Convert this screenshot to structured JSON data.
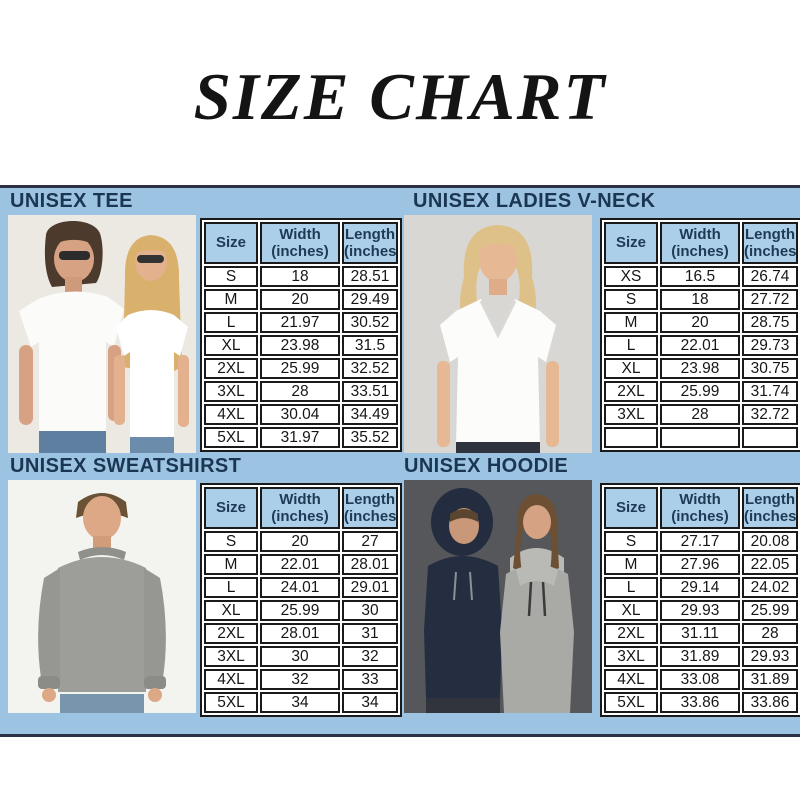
{
  "title": "SIZE CHART",
  "colors": {
    "panel_blue": "#9dc3e3",
    "table_header_blue": "#abcfe9",
    "navy_text": "#1b3653",
    "panel_border_navy": "#2a3145"
  },
  "table_columns": [
    "Size",
    "Width\n(inches)",
    "Length\n(inches)"
  ],
  "sections": [
    {
      "label": "UNISEX TEE",
      "photo": "couple-in-white-tees",
      "rows": [
        [
          "S",
          "18",
          "28.51"
        ],
        [
          "M",
          "20",
          "29.49"
        ],
        [
          "L",
          "21.97",
          "30.52"
        ],
        [
          "XL",
          "23.98",
          "31.5"
        ],
        [
          "2XL",
          "25.99",
          "32.52"
        ],
        [
          "3XL",
          "28",
          "33.51"
        ],
        [
          "4XL",
          "30.04",
          "34.49"
        ],
        [
          "5XL",
          "31.97",
          "35.52"
        ]
      ]
    },
    {
      "label": "UNISEX LADIES V-NECK",
      "photo": "woman-in-white-v-neck",
      "rows": [
        [
          "XS",
          "16.5",
          "26.74"
        ],
        [
          "S",
          "18",
          "27.72"
        ],
        [
          "M",
          "20",
          "28.75"
        ],
        [
          "L",
          "22.01",
          "29.73"
        ],
        [
          "XL",
          "23.98",
          "30.75"
        ],
        [
          "2XL",
          "25.99",
          "31.74"
        ],
        [
          "3XL",
          "28",
          "32.72"
        ],
        [
          "",
          "",
          ""
        ]
      ]
    },
    {
      "label": "UNISEX SWEATSHIRST",
      "photo": "man-in-gray-sweatshirt",
      "rows": [
        [
          "S",
          "20",
          "27"
        ],
        [
          "M",
          "22.01",
          "28.01"
        ],
        [
          "L",
          "24.01",
          "29.01"
        ],
        [
          "XL",
          "25.99",
          "30"
        ],
        [
          "2XL",
          "28.01",
          "31"
        ],
        [
          "3XL",
          "30",
          "32"
        ],
        [
          "4XL",
          "32",
          "33"
        ],
        [
          "5XL",
          "34",
          "34"
        ]
      ]
    },
    {
      "label": "UNISEX HOODIE",
      "photo": "couple-in-hoodies",
      "rows": [
        [
          "S",
          "27.17",
          "20.08"
        ],
        [
          "M",
          "27.96",
          "22.05"
        ],
        [
          "L",
          "29.14",
          "24.02"
        ],
        [
          "XL",
          "29.93",
          "25.99"
        ],
        [
          "2XL",
          "31.11",
          "28"
        ],
        [
          "3XL",
          "31.89",
          "29.93"
        ],
        [
          "4XL",
          "33.08",
          "31.89"
        ],
        [
          "5XL",
          "33.86",
          "33.86"
        ]
      ]
    }
  ]
}
